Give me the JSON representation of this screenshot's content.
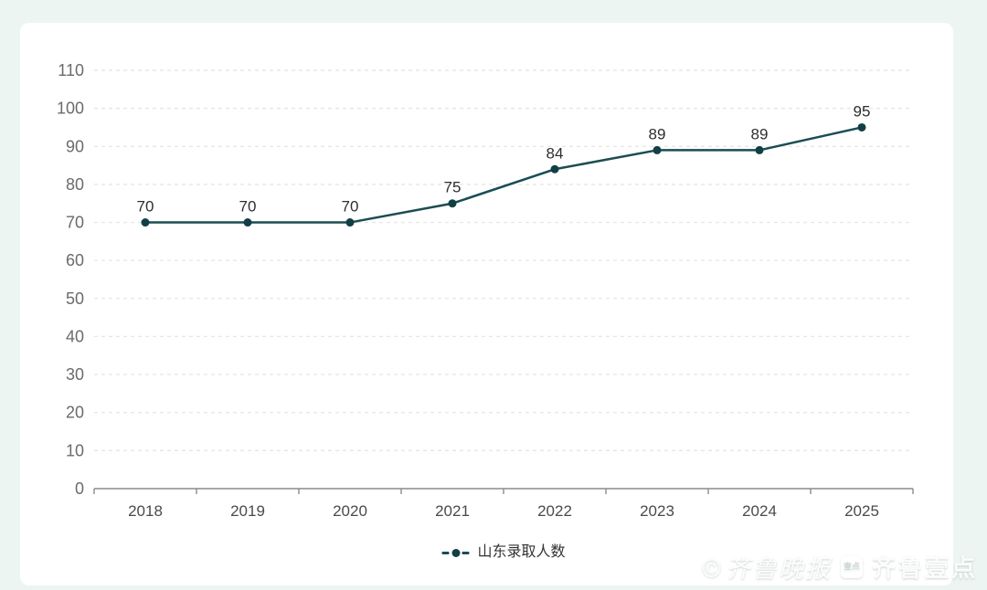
{
  "page": {
    "background_color": "#ecf5f2",
    "card_color": "#ffffff"
  },
  "chart_data": {
    "type": "line",
    "categories": [
      "2018",
      "2019",
      "2020",
      "2021",
      "2022",
      "2023",
      "2024",
      "2025"
    ],
    "series": [
      {
        "name": "山东录取人数",
        "values": [
          70,
          70,
          70,
          75,
          84,
          89,
          89,
          95
        ]
      }
    ],
    "xlabel": "",
    "ylabel": "",
    "ylim": [
      0,
      110
    ],
    "y_ticks": [
      0,
      10,
      20,
      30,
      40,
      50,
      60,
      70,
      80,
      90,
      100,
      110
    ],
    "grid": "horizontal-dashed",
    "legend_position": "bottom-center",
    "data_labels_shown": true,
    "colors": {
      "line": "#1a4d52",
      "marker": "#123f45",
      "grid": "#e7e7e7",
      "axis": "#8c8c8c",
      "y_tick_label": "#6b6b6b",
      "x_tick_label": "#4a4a4a",
      "data_label": "#2e2e2e"
    }
  },
  "legend": {
    "label": "山东录取人数"
  },
  "watermark": {
    "script_text": "©齐鲁晚报",
    "box_icon_text": "壹点",
    "brand_text": "齐鲁壹点"
  }
}
